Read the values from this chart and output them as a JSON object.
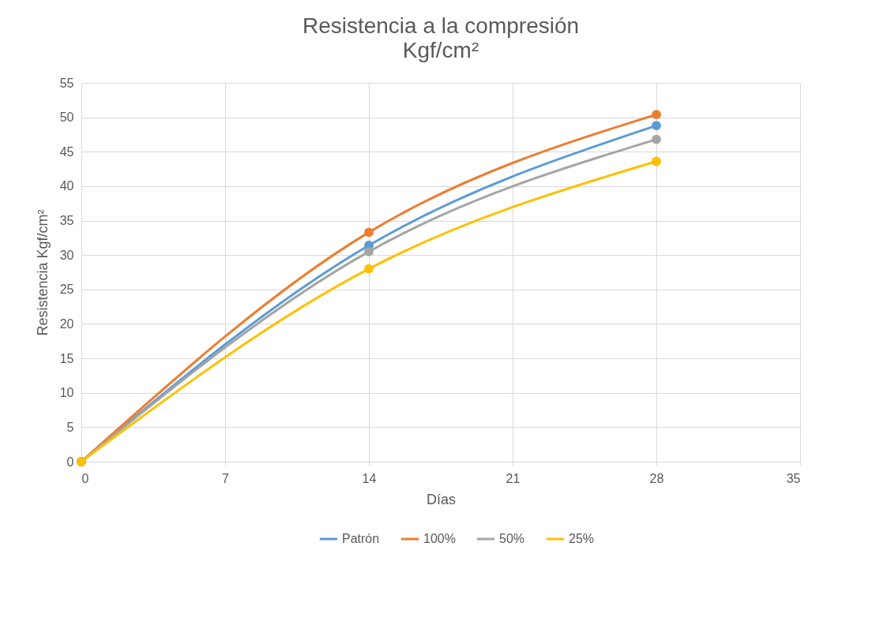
{
  "chart_data": {
    "type": "line",
    "title": "Resistencia a la compresión",
    "subtitle": "Kgf/cm²",
    "xlabel": "Días",
    "ylabel": "Resistencia Kgf/cm²",
    "x": [
      0,
      14,
      28
    ],
    "series": [
      {
        "name": "Patrón",
        "color": "#5b9bd5",
        "values": [
          0,
          31.4,
          48.8
        ]
      },
      {
        "name": "100%",
        "color": "#ed7d31",
        "values": [
          0,
          33.3,
          50.4
        ]
      },
      {
        "name": "50%",
        "color": "#a5a5a5",
        "values": [
          0,
          30.5,
          46.8
        ]
      },
      {
        "name": "25%",
        "color": "#ffc000",
        "values": [
          0,
          28.0,
          43.6
        ]
      }
    ],
    "xlim": [
      0,
      35
    ],
    "xticks": [
      0,
      7,
      14,
      21,
      28,
      35
    ],
    "ylim": [
      0,
      55
    ],
    "yticks": [
      0,
      5,
      10,
      15,
      20,
      25,
      30,
      35,
      40,
      45,
      50,
      55
    ],
    "grid": true,
    "legend": "bottom",
    "marker": "circle",
    "line_style": "solid"
  }
}
